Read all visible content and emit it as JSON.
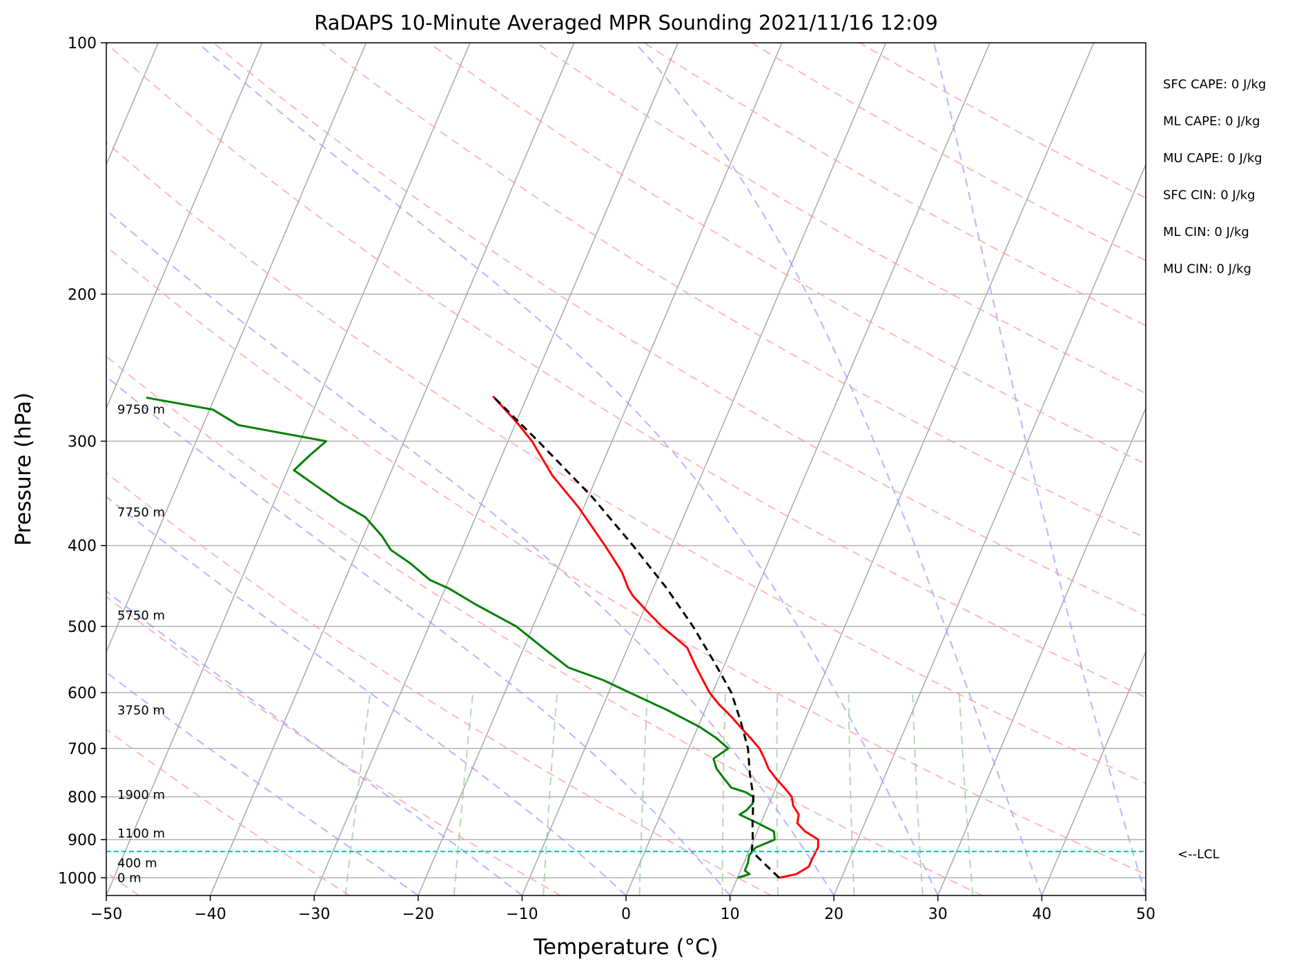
{
  "chart_data": {
    "type": "line",
    "subtype": "skew-t log-p sounding",
    "title": "RaDAPS 10-Minute Averaged MPR Sounding 2021/11/16 12:09",
    "xlabel": "Temperature (°C)",
    "ylabel": "Pressure (hPa)",
    "xlim": [
      -50,
      50
    ],
    "ylim": [
      1050,
      100
    ],
    "y_scale": "log",
    "x_ticks": [
      "−50",
      "−40",
      "−30",
      "−20",
      "−10",
      "0",
      "10",
      "20",
      "30",
      "40",
      "50"
    ],
    "y_ticks": [
      100,
      200,
      300,
      400,
      500,
      600,
      700,
      800,
      900,
      1000
    ],
    "grid": true,
    "height_labels": [
      {
        "p": 275,
        "label": "9750 m"
      },
      {
        "p": 365,
        "label": "7750 m"
      },
      {
        "p": 485,
        "label": "5750 m"
      },
      {
        "p": 630,
        "label": "3750 m"
      },
      {
        "p": 795,
        "label": "1900 m"
      },
      {
        "p": 885,
        "label": "1100 m"
      },
      {
        "p": 960,
        "label": "400 m"
      },
      {
        "p": 1000,
        "label": "0 m"
      }
    ],
    "lcl": {
      "p": 930,
      "label": "<--LCL",
      "color": "#00bfbf"
    },
    "stats": [
      "SFC CAPE: 0 J/kg",
      "ML CAPE: 0 J/kg",
      "MU CAPE: 0 J/kg",
      "SFC CIN: 0 J/kg",
      "ML CIN: 0 J/kg",
      "MU CIN: 0 J/kg"
    ],
    "series": [
      {
        "role": "temperature",
        "color": "#ff0000",
        "points": [
          [
            1000,
            14
          ],
          [
            990,
            15.5
          ],
          [
            970,
            16.4
          ],
          [
            950,
            16.4
          ],
          [
            920,
            16.5
          ],
          [
            900,
            16.2
          ],
          [
            880,
            14.6
          ],
          [
            860,
            13.5
          ],
          [
            840,
            13.3
          ],
          [
            820,
            12.4
          ],
          [
            800,
            11.9
          ],
          [
            780,
            10.8
          ],
          [
            760,
            9.6
          ],
          [
            740,
            8.5
          ],
          [
            720,
            7.7
          ],
          [
            700,
            6.8
          ],
          [
            680,
            5.5
          ],
          [
            660,
            4.1
          ],
          [
            640,
            2.7
          ],
          [
            620,
            1.1
          ],
          [
            600,
            -0.3
          ],
          [
            560,
            -2.6
          ],
          [
            530,
            -4.3
          ],
          [
            500,
            -7.6
          ],
          [
            480,
            -9.6
          ],
          [
            460,
            -11.6
          ],
          [
            450,
            -12.4
          ],
          [
            430,
            -13.7
          ],
          [
            400,
            -16.4
          ],
          [
            360,
            -20.5
          ],
          [
            330,
            -24.3
          ],
          [
            300,
            -27.7
          ],
          [
            285,
            -29.9
          ],
          [
            265,
            -33.3
          ]
        ]
      },
      {
        "role": "dewpoint",
        "color": "#008000",
        "points": [
          [
            1000,
            10
          ],
          [
            990,
            11
          ],
          [
            980,
            10.4
          ],
          [
            960,
            10.4
          ],
          [
            940,
            10.2
          ],
          [
            920,
            10.5
          ],
          [
            900,
            12
          ],
          [
            880,
            11.6
          ],
          [
            860,
            9.7
          ],
          [
            840,
            7.6
          ],
          [
            830,
            8.1
          ],
          [
            815,
            8.4
          ],
          [
            800,
            8.2
          ],
          [
            790,
            7.3
          ],
          [
            780,
            5.7
          ],
          [
            760,
            4.6
          ],
          [
            740,
            3.5
          ],
          [
            720,
            2.8
          ],
          [
            700,
            3.8
          ],
          [
            680,
            2.2
          ],
          [
            660,
            0.2
          ],
          [
            630,
            -3.6
          ],
          [
            600,
            -8
          ],
          [
            580,
            -11
          ],
          [
            560,
            -14.9
          ],
          [
            530,
            -18.2
          ],
          [
            500,
            -21.6
          ],
          [
            470,
            -26.5
          ],
          [
            450,
            -29.7
          ],
          [
            440,
            -31.8
          ],
          [
            420,
            -34.4
          ],
          [
            405,
            -36.8
          ],
          [
            390,
            -38.2
          ],
          [
            370,
            -40.6
          ],
          [
            355,
            -43.7
          ],
          [
            340,
            -46.5
          ],
          [
            325,
            -49.4
          ],
          [
            312,
            -48.5
          ],
          [
            300,
            -47.5
          ],
          [
            287,
            -56.6
          ],
          [
            275,
            -59.7
          ],
          [
            266,
            -66.6
          ]
        ]
      },
      {
        "role": "parcel",
        "color": "#000000",
        "dashed": true,
        "points": [
          [
            1000,
            14
          ],
          [
            930,
            10.3
          ],
          [
            900,
            9.9
          ],
          [
            860,
            9.2
          ],
          [
            800,
            8.2
          ],
          [
            750,
            6.9
          ],
          [
            700,
            5.7
          ],
          [
            650,
            3.9
          ],
          [
            600,
            1.8
          ],
          [
            550,
            -1.2
          ],
          [
            500,
            -4.6
          ],
          [
            450,
            -8.7
          ],
          [
            400,
            -13.7
          ],
          [
            350,
            -19.6
          ],
          [
            300,
            -27.1
          ],
          [
            265,
            -33.3
          ]
        ]
      }
    ]
  }
}
